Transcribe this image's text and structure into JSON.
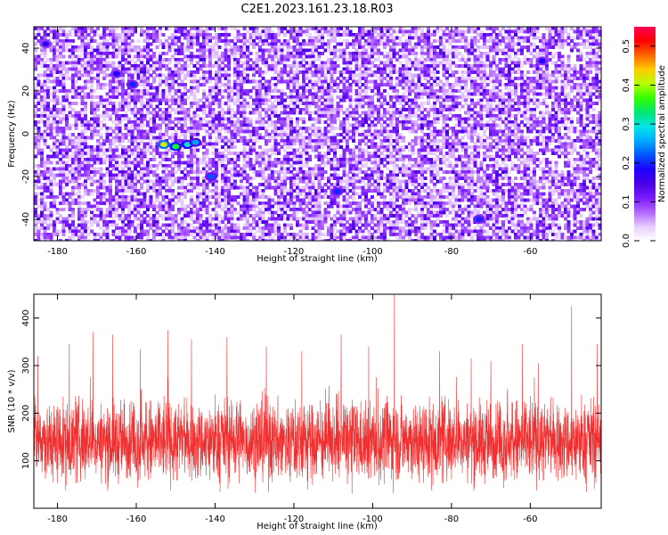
{
  "figure_title": "C2E1.2023.161.23.18.R03",
  "colors": {
    "snr_line": "#f03030",
    "axes": "#000000",
    "colorbar_stops": [
      "#ffffff",
      "#e6ccff",
      "#b366ff",
      "#7a1aff",
      "#4b00e6",
      "#1f00ff",
      "#0055ff",
      "#00aaff",
      "#00e6e6",
      "#00e673",
      "#33ff00",
      "#b3ff00",
      "#ffcc00",
      "#ff6600",
      "#ff0000",
      "#ff0055"
    ]
  },
  "chart_data": [
    {
      "type": "heatmap",
      "title": "",
      "xlabel": "Height of straight line (km)",
      "ylabel": "Frequency (Hz)",
      "xlim": [
        -186,
        -42
      ],
      "ylim": [
        -50,
        50
      ],
      "xticks": [
        -180,
        -160,
        -140,
        -120,
        -100,
        -80,
        -60
      ],
      "yticks": [
        -40,
        -20,
        0,
        20,
        40
      ],
      "colorbar": {
        "label": "Normalized spectral amplitude",
        "range": [
          0,
          0.55
        ],
        "ticks": [
          0.0,
          0.1,
          0.2,
          0.3,
          0.4,
          0.5
        ]
      },
      "description_of_values": "random speckle of mostly low normalized amplitude (0.05-0.15), with isolated higher spots",
      "hot_spots": [
        {
          "x": -153,
          "y": -5,
          "value": 0.42
        },
        {
          "x": -150,
          "y": -6,
          "value": 0.35
        },
        {
          "x": -147,
          "y": -5,
          "value": 0.3
        },
        {
          "x": -145,
          "y": -4,
          "value": 0.25
        },
        {
          "x": -165,
          "y": 28,
          "value": 0.18
        },
        {
          "x": -161,
          "y": 23,
          "value": 0.2
        },
        {
          "x": -141,
          "y": -20,
          "value": 0.22
        },
        {
          "x": -109,
          "y": -27,
          "value": 0.2
        },
        {
          "x": -73,
          "y": -40,
          "value": 0.2
        },
        {
          "x": -183,
          "y": 42,
          "value": 0.17
        },
        {
          "x": -57,
          "y": 34,
          "value": 0.18
        }
      ]
    },
    {
      "type": "line",
      "title": "",
      "xlabel": "Height of straight line (km)",
      "ylabel": "SNR (10 * v/v)",
      "xlim": [
        -186,
        -42
      ],
      "ylim": [
        0,
        450
      ],
      "xticks": [
        -180,
        -160,
        -140,
        -120,
        -100,
        -80,
        -60
      ],
      "yticks": [
        100,
        200,
        300,
        400
      ],
      "series": [
        {
          "name": "",
          "typical_range": [
            20,
            260
          ],
          "baseline": 130,
          "peaks": [
            {
              "x": -185,
              "y": 320
            },
            {
              "x": -177,
              "y": 345
            },
            {
              "x": -171,
              "y": 370
            },
            {
              "x": -166,
              "y": 365
            },
            {
              "x": -159,
              "y": 335
            },
            {
              "x": -152,
              "y": 375
            },
            {
              "x": -146,
              "y": 355
            },
            {
              "x": -137,
              "y": 360
            },
            {
              "x": -127,
              "y": 340
            },
            {
              "x": -118,
              "y": 330
            },
            {
              "x": -108,
              "y": 365
            },
            {
              "x": -101,
              "y": 340
            },
            {
              "x": -94.5,
              "y": 450
            },
            {
              "x": -83,
              "y": 330
            },
            {
              "x": -75,
              "y": 315
            },
            {
              "x": -70,
              "y": 310
            },
            {
              "x": -62,
              "y": 345
            },
            {
              "x": -58,
              "y": 305
            },
            {
              "x": -49.5,
              "y": 425
            },
            {
              "x": -43,
              "y": 345
            }
          ]
        }
      ]
    }
  ]
}
